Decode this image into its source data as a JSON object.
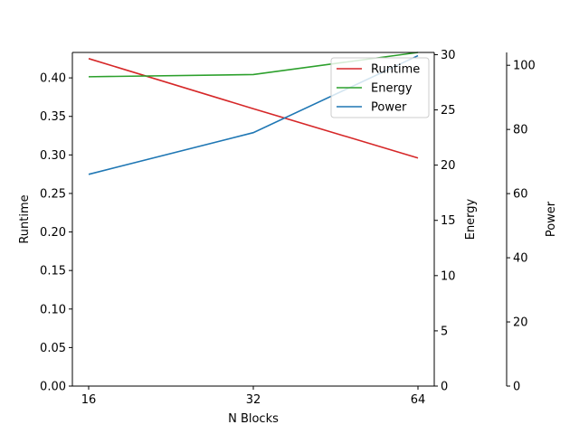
{
  "chart_data": {
    "type": "line",
    "x": [
      16,
      32,
      64
    ],
    "x_tick_labels": [
      "16",
      "32",
      "64"
    ],
    "xlabel": "N Blocks",
    "legend_position": "top-right",
    "grid": false,
    "axes": [
      {
        "id": "runtime",
        "label": "Runtime",
        "side": "left",
        "ylim": [
          0,
          0.433
        ],
        "ticks": [
          0.0,
          0.05,
          0.1,
          0.15,
          0.2,
          0.25,
          0.3,
          0.35,
          0.4
        ],
        "tick_labels": [
          "0.00",
          "0.05",
          "0.10",
          "0.15",
          "0.20",
          "0.25",
          "0.30",
          "0.35",
          "0.40"
        ]
      },
      {
        "id": "energy",
        "label": "Energy",
        "side": "right",
        "ylim": [
          0,
          30.2
        ],
        "ticks": [
          0,
          5,
          10,
          15,
          20,
          25,
          30
        ],
        "tick_labels": [
          "0",
          "5",
          "10",
          "15",
          "20",
          "25",
          "30"
        ]
      },
      {
        "id": "power",
        "label": "Power",
        "side": "right-offset",
        "ylim": [
          0,
          104
        ],
        "ticks": [
          0,
          20,
          40,
          60,
          80,
          100
        ],
        "tick_labels": [
          "0",
          "20",
          "40",
          "60",
          "80",
          "100"
        ]
      }
    ],
    "series": [
      {
        "name": "Runtime",
        "axis": "runtime",
        "color": "#d62728",
        "values": [
          0.425,
          0.36,
          0.296
        ]
      },
      {
        "name": "Energy",
        "axis": "energy",
        "color": "#2ca02c",
        "values": [
          28.0,
          28.2,
          30.2
        ]
      },
      {
        "name": "Power",
        "axis": "power",
        "color": "#1f77b4",
        "values": [
          66.0,
          79.0,
          103.0
        ]
      }
    ]
  }
}
